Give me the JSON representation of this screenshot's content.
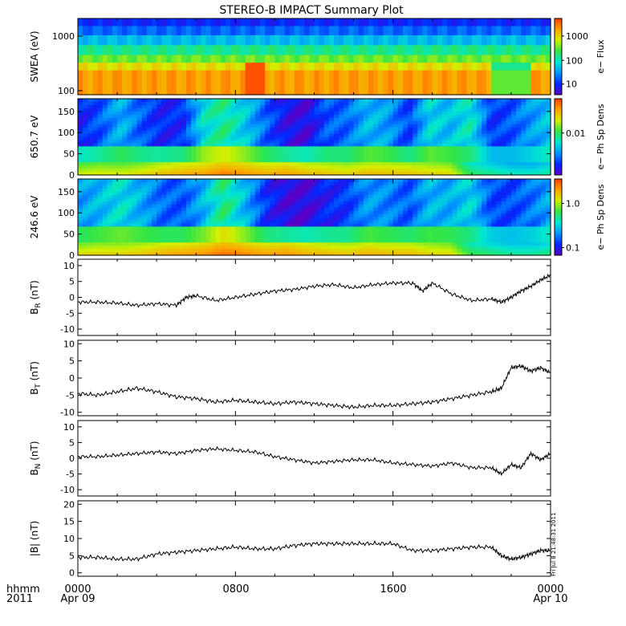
{
  "title": "STEREO-B IMPACT Summary Plot",
  "footer": {
    "fmt_label": "hhmm",
    "year": "2011",
    "x_ticks": [
      "0000",
      "0800",
      "1600",
      "0000"
    ],
    "date_start": "Apr 09",
    "date_end": "Apr 10"
  },
  "stamp": "Fri Jul  8 21:48:31 2011",
  "colors": {
    "colorscale": [
      "#5a00c8",
      "#0028ff",
      "#0096ff",
      "#00e6d2",
      "#32e646",
      "#d2f000",
      "#ffa000",
      "#ff3c00"
    ],
    "line": "#000000"
  },
  "chart_data": [
    {
      "type": "heatmap",
      "ylabel": "SWEA (eV)",
      "ytick_labels": [
        "1000",
        "100"
      ],
      "colorbar_label": "e− Flux",
      "colorbar_ticks": [
        "1000",
        "100",
        "10"
      ],
      "log_y": true,
      "log_color": true,
      "energy_bands": [
        {
          "level": 0.13,
          "y0": 0.0,
          "y1": 0.1
        },
        {
          "level": 0.22,
          "y0": 0.1,
          "y1": 0.22
        },
        {
          "level": 0.35,
          "y0": 0.22,
          "y1": 0.35
        },
        {
          "level": 0.5,
          "y0": 0.35,
          "y1": 0.48
        },
        {
          "level": 0.62,
          "y0": 0.48,
          "y1": 0.58
        },
        {
          "level": 0.75,
          "y0": 0.58,
          "y1": 0.68
        },
        {
          "level": 0.86,
          "y0": 0.68,
          "y1": 1.0
        }
      ],
      "hot_spots": [
        {
          "t0": 0.35,
          "t1": 0.4,
          "level": 0.97
        },
        {
          "t0": 0.88,
          "t1": 0.96,
          "level": 0.55
        }
      ]
    },
    {
      "type": "heatmap",
      "ylabel": "650.7 eV",
      "ylim": [
        0,
        180
      ],
      "yticks": [
        0,
        50,
        100,
        150
      ],
      "colorbar_label": "e− Ph Sp Dens",
      "colorbar_ticks": [
        "0.01"
      ],
      "log_color": true,
      "profile": [
        0.12,
        0.2,
        0.34,
        0.2,
        0.12,
        0.14,
        0.42,
        0.5,
        0.38,
        0.22,
        0.08,
        0.05,
        0.2,
        0.22,
        0.35,
        0.3,
        0.16,
        0.4,
        0.35,
        0.45,
        0.15,
        0.2,
        0.3,
        0.38
      ],
      "low_band": [
        0.56,
        0.58,
        0.57,
        0.6,
        0.65,
        0.68,
        0.7,
        0.75,
        0.72,
        0.68,
        0.7,
        0.66,
        0.64,
        0.62,
        0.66,
        0.65,
        0.64,
        0.62,
        0.6,
        0.4,
        0.35,
        0.3,
        0.3,
        0.35
      ]
    },
    {
      "type": "heatmap",
      "ylabel": "246.6 eV",
      "ylim": [
        0,
        180
      ],
      "yticks": [
        0,
        50,
        100,
        150
      ],
      "colorbar_label": "e− Ph Sp Dens",
      "colorbar_ticks": [
        "1.0",
        "0.1"
      ],
      "log_color": true,
      "profile": [
        0.3,
        0.35,
        0.42,
        0.32,
        0.22,
        0.2,
        0.34,
        0.52,
        0.35,
        0.15,
        0.05,
        0.04,
        0.12,
        0.16,
        0.3,
        0.26,
        0.2,
        0.34,
        0.32,
        0.4,
        0.18,
        0.18,
        0.24,
        0.34
      ],
      "low_band": [
        0.6,
        0.62,
        0.62,
        0.64,
        0.68,
        0.7,
        0.72,
        0.78,
        0.74,
        0.7,
        0.72,
        0.68,
        0.66,
        0.64,
        0.68,
        0.66,
        0.66,
        0.62,
        0.6,
        0.42,
        0.38,
        0.34,
        0.34,
        0.38
      ]
    },
    {
      "type": "line",
      "ylabel": "BR",
      "ylabel_sub": "R",
      "ylabel_unit": "(nT)",
      "ylim": [
        -12,
        12
      ],
      "yticks": [
        -10,
        -5,
        0,
        5,
        10
      ],
      "x": [
        0,
        1,
        2,
        3,
        4,
        5,
        5.5,
        6,
        7,
        8,
        9,
        10,
        11,
        12,
        13,
        14,
        15,
        16,
        17,
        17.5,
        18,
        19,
        20,
        21,
        21.5,
        22,
        22.5,
        23,
        23.5,
        24
      ],
      "values": [
        -1.5,
        -1.5,
        -1.8,
        -2.5,
        -2,
        -2.5,
        0,
        0.5,
        -1,
        0,
        1,
        2,
        2.5,
        3.5,
        4,
        3,
        4,
        4.5,
        4.5,
        2,
        4.5,
        1,
        -1,
        -0.5,
        -1.5,
        0,
        2,
        3.5,
        5.5,
        7
      ]
    },
    {
      "type": "line",
      "ylabel": "BT",
      "ylabel_sub": "T",
      "ylabel_unit": "(nT)",
      "ylim": [
        -11,
        11
      ],
      "yticks": [
        -10,
        -5,
        0,
        5,
        10
      ],
      "x": [
        0,
        1,
        2,
        3,
        4,
        5,
        6,
        7,
        8,
        9,
        10,
        11,
        12,
        13,
        14,
        15,
        16,
        17,
        18,
        19,
        20,
        21,
        21.5,
        22,
        22.5,
        23,
        23.5,
        24
      ],
      "values": [
        -4.5,
        -5,
        -4,
        -3,
        -4,
        -5.5,
        -6,
        -7,
        -6.5,
        -7,
        -7.5,
        -7,
        -7.5,
        -8,
        -8.5,
        -8,
        -8,
        -7.5,
        -7,
        -6,
        -5,
        -4,
        -3,
        3,
        3.5,
        2,
        3,
        1.5
      ]
    },
    {
      "type": "line",
      "ylabel": "BN",
      "ylabel_sub": "N",
      "ylabel_unit": "(nT)",
      "ylim": [
        -12,
        12
      ],
      "yticks": [
        -10,
        -5,
        0,
        5,
        10
      ],
      "x": [
        0,
        1,
        2,
        3,
        4,
        5,
        6,
        7,
        8,
        9,
        10,
        11,
        12,
        13,
        14,
        15,
        16,
        17,
        18,
        19,
        20,
        21,
        21.5,
        22,
        22.5,
        23,
        23.5,
        24
      ],
      "values": [
        0.5,
        0.5,
        1,
        1.5,
        2,
        1.5,
        2.5,
        3,
        2.5,
        2,
        0.5,
        -0.5,
        -1.5,
        -1,
        -0.5,
        -0.5,
        -1.5,
        -2,
        -2.5,
        -1.5,
        -3,
        -3,
        -5,
        -2,
        -3,
        1.5,
        -0.5,
        1.5
      ]
    },
    {
      "type": "line",
      "ylabel": "|B| (nT)",
      "ylim": [
        -1,
        21
      ],
      "yticks": [
        0,
        5,
        10,
        15,
        20
      ],
      "x": [
        0,
        1,
        2,
        3,
        4,
        5,
        6,
        7,
        8,
        9,
        10,
        11,
        12,
        13,
        14,
        15,
        16,
        17,
        18,
        19,
        20,
        21,
        21.5,
        22,
        22.5,
        23,
        23.5,
        24
      ],
      "values": [
        4.5,
        4.5,
        4,
        4,
        5.5,
        6,
        6.5,
        7,
        7.5,
        7,
        7,
        8,
        8.5,
        8.5,
        8.5,
        8.5,
        8.5,
        6.5,
        6.5,
        7,
        7.5,
        7.5,
        5,
        4,
        4.5,
        5.5,
        6.5,
        6.5
      ]
    }
  ]
}
